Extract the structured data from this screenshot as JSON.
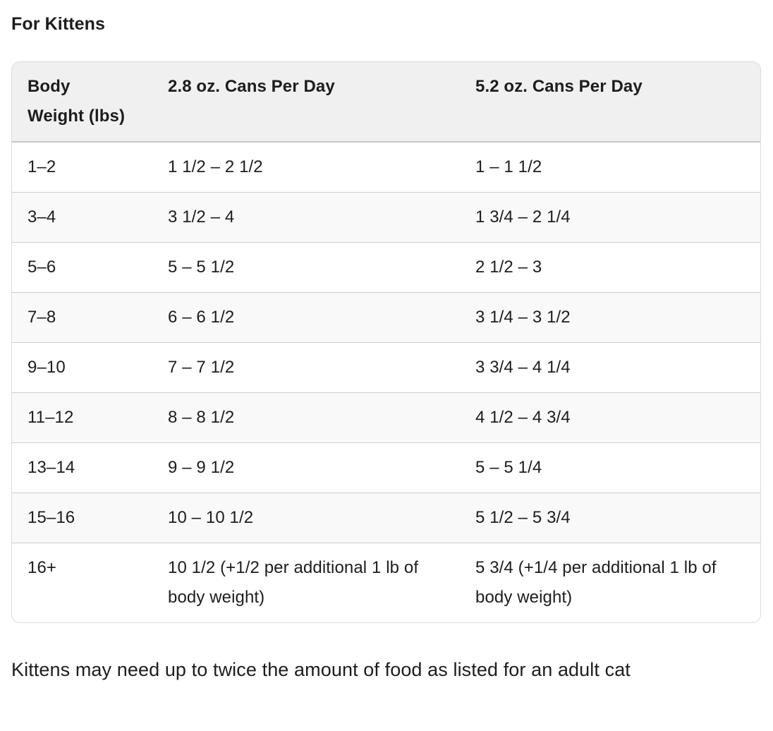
{
  "page": {
    "title": "For Kittens",
    "footnote": "Kittens may need up to twice the amount of food as listed for an adult cat"
  },
  "theme": {
    "text": "#1d1d1f",
    "header-bg": "#f0f0f0",
    "stripe-bg": "#f9f9f9",
    "outer-border": "#dcdcdc",
    "row-sep": "#cdcdcd",
    "header-sep": "#c4c4c4",
    "page-bg": "#ffffff"
  },
  "table": {
    "headers": [
      "Body Weight (lbs)",
      "2.8 oz. Cans Per Day",
      "5.2 oz. Cans Per Day"
    ],
    "rows": [
      [
        "1–2",
        "1 1/2 – 2 1/2",
        "1 – 1 1/2"
      ],
      [
        "3–4",
        "3 1/2 – 4",
        "1 3/4 – 2 1/4"
      ],
      [
        "5–6",
        "5 – 5 1/2",
        "2 1/2 – 3"
      ],
      [
        "7–8",
        "6 – 6 1/2",
        "3 1/4 – 3 1/2"
      ],
      [
        "9–10",
        "7 – 7 1/2",
        "3 3/4 – 4 1/4"
      ],
      [
        "11–12",
        "8 – 8 1/2",
        "4 1/2 – 4 3/4"
      ],
      [
        "13–14",
        "9 – 9 1/2",
        "5 – 5 1/4"
      ],
      [
        "15–16",
        "10 – 10 1/2",
        "5 1/2 – 5 3/4"
      ],
      [
        "16+",
        "10 1/2 (+1/2 per additional 1 lb of body weight)",
        "5 3/4 (+1/4 per additional 1 lb of body weight)"
      ]
    ]
  }
}
